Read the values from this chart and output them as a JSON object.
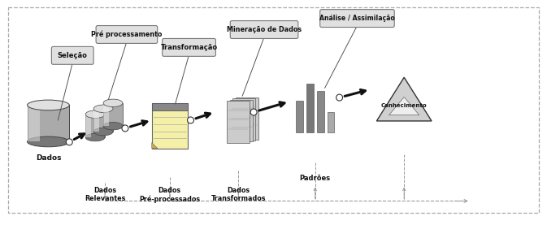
{
  "labels": {
    "dados": "Dados",
    "dados_relevantes": "Dados\nRelevantes",
    "dados_preprocessados": "Dados\nPré-processados",
    "dados_transformados": "Dados\nTransformados",
    "padroes": "Padrões",
    "conhecimento": "Conhecimento",
    "selecao": "Seleção",
    "pre_processamento": "Pré processamento",
    "transformacao": "Transformação",
    "mineracao": "Mineração de Dados",
    "analise": "Análise / Assimilação"
  },
  "pill_fill": "#e0e0e0",
  "pill_edge": "#777777",
  "note_fill": "#f5f0a8",
  "note_edge": "#666666"
}
